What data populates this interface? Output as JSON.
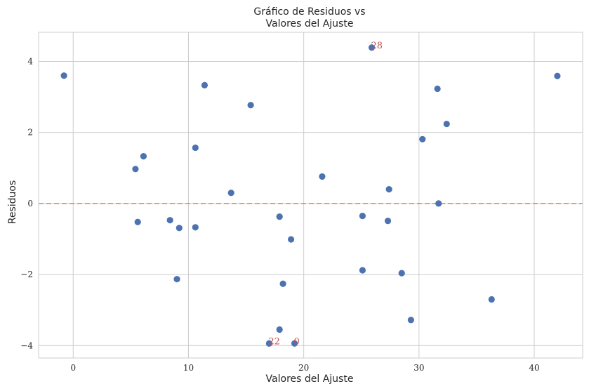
{
  "chart_data": {
    "type": "scatter",
    "title_lines": [
      "Gráfico de Residuos vs",
      "Valores del Ajuste"
    ],
    "xlabel": "Valores del Ajuste",
    "ylabel": "Residuos",
    "xlim": [
      -3,
      44.2
    ],
    "ylim": [
      -4.35,
      4.82
    ],
    "xticks": [
      0,
      10,
      20,
      30,
      40
    ],
    "yticks": [
      -4,
      -2,
      0,
      2,
      4
    ],
    "xtick_labels": [
      "0",
      "10",
      "20",
      "30",
      "40"
    ],
    "ytick_labels": [
      "−4",
      "−2",
      "0",
      "2",
      "4"
    ],
    "grid": true,
    "reference_line": {
      "y": 0,
      "style": "dashed",
      "color": "#dd8452"
    },
    "point_color": "#4c72b0",
    "annotation_color": "#c44e52",
    "points": [
      {
        "x": -0.8,
        "y": 3.6
      },
      {
        "x": 5.4,
        "y": 0.97
      },
      {
        "x": 5.6,
        "y": -0.52
      },
      {
        "x": 6.1,
        "y": 1.33
      },
      {
        "x": 8.4,
        "y": -0.47
      },
      {
        "x": 9.0,
        "y": -2.13
      },
      {
        "x": 9.2,
        "y": -0.69
      },
      {
        "x": 10.6,
        "y": 1.57
      },
      {
        "x": 10.6,
        "y": -0.67
      },
      {
        "x": 11.4,
        "y": 3.33
      },
      {
        "x": 13.7,
        "y": 0.3
      },
      {
        "x": 15.4,
        "y": 2.77
      },
      {
        "x": 17.0,
        "y": -3.94
      },
      {
        "x": 17.9,
        "y": -0.37
      },
      {
        "x": 17.9,
        "y": -3.55
      },
      {
        "x": 18.2,
        "y": -2.26
      },
      {
        "x": 18.9,
        "y": -1.01
      },
      {
        "x": 19.2,
        "y": -3.94
      },
      {
        "x": 21.6,
        "y": 0.76
      },
      {
        "x": 25.1,
        "y": -0.35
      },
      {
        "x": 25.1,
        "y": -1.88
      },
      {
        "x": 25.9,
        "y": 4.39
      },
      {
        "x": 27.3,
        "y": -0.49
      },
      {
        "x": 27.4,
        "y": 0.4
      },
      {
        "x": 28.5,
        "y": -1.96
      },
      {
        "x": 29.3,
        "y": -3.28
      },
      {
        "x": 30.3,
        "y": 1.81
      },
      {
        "x": 31.6,
        "y": 3.23
      },
      {
        "x": 31.7,
        "y": 0.0
      },
      {
        "x": 32.4,
        "y": 2.24
      },
      {
        "x": 36.3,
        "y": -2.7
      },
      {
        "x": 42.0,
        "y": 3.59
      }
    ],
    "annotations": [
      {
        "text": "28",
        "x": 25.9,
        "y": 4.39
      },
      {
        "text": "22",
        "x": 17.0,
        "y": -3.94
      },
      {
        "text": "0",
        "x": 19.2,
        "y": -3.94
      }
    ]
  }
}
